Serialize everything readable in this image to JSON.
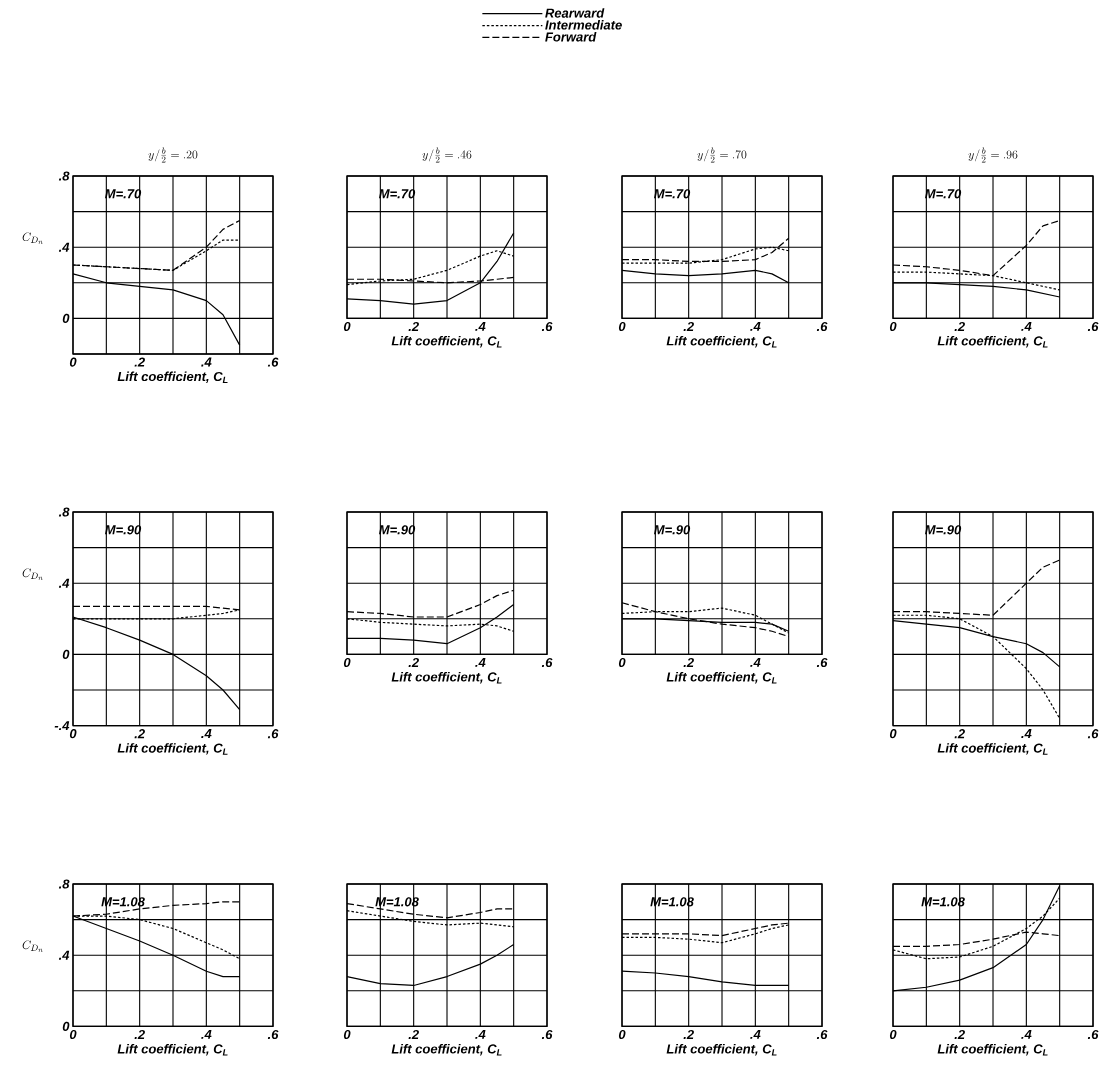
{
  "chart_data": [
    {
      "type": "line",
      "title": "y/\\frac{b}{2}=.20",
      "annotations": [
        "M=.70"
      ],
      "xlabel": "Lift coefficient, C$_{L}$",
      "ylabel": "C_{D_n}",
      "grid": true,
      "legend": "top",
      "xlim": [
        0,
        0.6
      ],
      "ylim": [
        -0.2,
        0.8
      ],
      "xticks": [
        0,
        {
          "value": 0.1,
          "label": null
        },
        {
          "value": 0.2,
          "label": ".2"
        },
        {
          "value": 0.3,
          "label": null
        },
        {
          "value": 0.4,
          "label": ".4"
        },
        {
          "value": 0.5,
          "label": null
        },
        {
          "value": 0.6,
          "label": ".6"
        }
      ],
      "yticks": [
        {
          "value": -0.2,
          "label": null
        },
        0,
        {
          "value": 0.2,
          "label": null
        },
        {
          "value": 0.4,
          "label": ".4"
        },
        {
          "value": 0.6,
          "label": null
        },
        {
          "value": 0.8,
          "label": ".8"
        }
      ],
      "x": [
        0,
        0.1,
        0.2,
        0.3,
        0.4,
        0.45,
        0.5
      ],
      "series": [
        {
          "name": "Rearward",
          "color": "#000000",
          "line_style": "solid",
          "values": [
            0.25,
            0.2,
            0.18,
            0.16,
            0.1,
            0.02,
            -0.15
          ]
        },
        {
          "name": "Intermediate",
          "color": "#000000",
          "line_style": "dotted",
          "values": [
            0.3,
            0.29,
            0.28,
            0.27,
            0.38,
            0.44,
            0.44
          ]
        },
        {
          "name": "Forward",
          "color": "#000000",
          "line_style": "dashed",
          "values": [
            0.3,
            0.29,
            0.28,
            0.27,
            0.4,
            0.5,
            0.55
          ]
        }
      ]
    },
    {
      "type": "line",
      "title": "y/\\frac{b}{2}=.46",
      "annotations": [
        "M=.70"
      ],
      "xlabel": "Lift coefficient, C$_{L}$",
      "grid": true,
      "tick_labels": "x",
      "xlim": [
        0,
        0.6
      ],
      "ylim": [
        0,
        0.8
      ],
      "xticks": [
        0,
        {
          "value": 0.1,
          "label": null
        },
        {
          "value": 0.2,
          "label": ".2"
        },
        {
          "value": 0.3,
          "label": null
        },
        {
          "value": 0.4,
          "label": ".4"
        },
        {
          "value": 0.5,
          "label": null
        },
        {
          "value": 0.6,
          "label": ".6"
        }
      ],
      "yticks": [
        0,
        0.2,
        0.4,
        0.6,
        0.8
      ],
      "x": [
        0,
        0.1,
        0.2,
        0.3,
        0.4,
        0.45,
        0.5
      ],
      "series": [
        {
          "color": "#000000",
          "line_style": "solid",
          "values": [
            0.11,
            0.1,
            0.08,
            0.1,
            0.2,
            0.32,
            0.48
          ]
        },
        {
          "color": "#000000",
          "line_style": "dotted",
          "values": [
            0.19,
            0.21,
            0.22,
            0.27,
            0.35,
            0.38,
            0.35
          ]
        },
        {
          "color": "#000000",
          "line_style": "dashed",
          "values": [
            0.22,
            0.22,
            0.21,
            0.2,
            0.21,
            0.22,
            0.23
          ]
        }
      ]
    },
    {
      "type": "line",
      "title": "y/\\frac{b}{2}=.70",
      "annotations": [
        "M=.70"
      ],
      "xlabel": "Lift coefficient, C$_{L}$",
      "grid": true,
      "tick_labels": "x",
      "xlim": [
        0,
        0.6
      ],
      "ylim": [
        0,
        0.8
      ],
      "xticks": [
        0,
        {
          "value": 0.1,
          "label": null
        },
        {
          "value": 0.2,
          "label": ".2"
        },
        {
          "value": 0.3,
          "label": null
        },
        {
          "value": 0.4,
          "label": ".4"
        },
        {
          "value": 0.5,
          "label": null
        },
        {
          "value": 0.6,
          "label": ".6"
        }
      ],
      "yticks": [
        0,
        0.2,
        0.4,
        0.6,
        0.8
      ],
      "x": [
        0,
        0.1,
        0.2,
        0.3,
        0.4,
        0.45,
        0.5
      ],
      "series": [
        {
          "color": "#000000",
          "line_style": "solid",
          "values": [
            0.27,
            0.25,
            0.24,
            0.25,
            0.27,
            0.25,
            0.2
          ]
        },
        {
          "color": "#000000",
          "line_style": "dotted",
          "values": [
            0.31,
            0.31,
            0.31,
            0.33,
            0.39,
            0.4,
            0.38
          ]
        },
        {
          "color": "#000000",
          "line_style": "dashed",
          "values": [
            0.33,
            0.33,
            0.32,
            0.32,
            0.33,
            0.37,
            0.45
          ]
        }
      ]
    },
    {
      "type": "line",
      "title": "y/\\frac{b}{2}=.96",
      "annotations": [
        "M=.70"
      ],
      "xlabel": "Lift coefficient, C$_{L}$",
      "grid": true,
      "tick_labels": "x",
      "xlim": [
        0,
        0.6
      ],
      "ylim": [
        0,
        0.8
      ],
      "xticks": [
        0,
        {
          "value": 0.1,
          "label": null
        },
        {
          "value": 0.2,
          "label": ".2"
        },
        {
          "value": 0.3,
          "label": null
        },
        {
          "value": 0.4,
          "label": ".4"
        },
        {
          "value": 0.5,
          "label": null
        },
        {
          "value": 0.6,
          "label": ".6"
        }
      ],
      "yticks": [
        0,
        0.2,
        0.4,
        0.6,
        0.8
      ],
      "x": [
        0,
        0.1,
        0.2,
        0.3,
        0.4,
        0.45,
        0.5
      ],
      "series": [
        {
          "color": "#000000",
          "line_style": "solid",
          "values": [
            0.2,
            0.2,
            0.19,
            0.18,
            0.16,
            0.14,
            0.12
          ]
        },
        {
          "color": "#000000",
          "line_style": "dotted",
          "values": [
            0.26,
            0.26,
            0.25,
            0.24,
            0.2,
            0.18,
            0.16
          ]
        },
        {
          "color": "#000000",
          "line_style": "dashed",
          "values": [
            0.3,
            0.29,
            0.27,
            0.24,
            0.41,
            0.52,
            0.55
          ]
        }
      ]
    },
    {
      "type": "line",
      "annotations": [
        "M=.90"
      ],
      "xlabel": "Lift coefficient, C$_{L}$",
      "ylabel": "C_{D_n}",
      "grid": true,
      "xlim": [
        0,
        0.6
      ],
      "ylim": [
        -0.4,
        0.8
      ],
      "xticks": [
        0,
        {
          "value": 0.1,
          "label": null
        },
        {
          "value": 0.2,
          "label": ".2"
        },
        {
          "value": 0.3,
          "label": null
        },
        {
          "value": 0.4,
          "label": ".4"
        },
        {
          "value": 0.5,
          "label": null
        },
        {
          "value": 0.6,
          "label": ".6"
        }
      ],
      "yticks": [
        {
          "value": -0.4,
          "label": "-.4"
        },
        {
          "value": -0.2,
          "label": null
        },
        0,
        {
          "value": 0.2,
          "label": null
        },
        {
          "value": 0.4,
          "label": ".4"
        },
        {
          "value": 0.6,
          "label": null
        },
        {
          "value": 0.8,
          "label": ".8"
        }
      ],
      "x": [
        0,
        0.1,
        0.2,
        0.3,
        0.4,
        0.45,
        0.5
      ],
      "series": [
        {
          "color": "#000000",
          "line_style": "solid",
          "values": [
            0.21,
            0.15,
            0.08,
            0.0,
            -0.12,
            -0.2,
            -0.31
          ]
        },
        {
          "color": "#000000",
          "line_style": "dotted",
          "values": [
            0.2,
            0.2,
            0.2,
            0.2,
            0.22,
            0.23,
            0.25
          ]
        },
        {
          "color": "#000000",
          "line_style": "dashed",
          "values": [
            0.27,
            0.27,
            0.27,
            0.27,
            0.27,
            0.26,
            0.25
          ]
        }
      ]
    },
    {
      "type": "line",
      "annotations": [
        "M=.90"
      ],
      "xlabel": "Lift coefficient, C$_{L}$",
      "grid": true,
      "tick_labels": "x",
      "xlim": [
        0,
        0.6
      ],
      "ylim": [
        0,
        0.8
      ],
      "xticks": [
        0,
        {
          "value": 0.1,
          "label": null
        },
        {
          "value": 0.2,
          "label": ".2"
        },
        {
          "value": 0.3,
          "label": null
        },
        {
          "value": 0.4,
          "label": ".4"
        },
        {
          "value": 0.5,
          "label": null
        },
        {
          "value": 0.6,
          "label": ".6"
        }
      ],
      "yticks": [
        0,
        0.2,
        0.4,
        0.6,
        0.8
      ],
      "x": [
        0,
        0.1,
        0.2,
        0.3,
        0.4,
        0.45,
        0.5
      ],
      "series": [
        {
          "color": "#000000",
          "line_style": "solid",
          "values": [
            0.09,
            0.09,
            0.08,
            0.06,
            0.15,
            0.21,
            0.28
          ]
        },
        {
          "color": "#000000",
          "line_style": "dotted",
          "values": [
            0.2,
            0.18,
            0.17,
            0.16,
            0.17,
            0.16,
            0.13
          ]
        },
        {
          "color": "#000000",
          "line_style": "dashed",
          "values": [
            0.24,
            0.23,
            0.21,
            0.21,
            0.28,
            0.33,
            0.36
          ]
        }
      ]
    },
    {
      "type": "line",
      "annotations": [
        "M=.90"
      ],
      "xlabel": "Lift coefficient, C$_{L}$",
      "grid": true,
      "tick_labels": "x",
      "xlim": [
        0,
        0.6
      ],
      "ylim": [
        0,
        0.8
      ],
      "xticks": [
        0,
        {
          "value": 0.1,
          "label": null
        },
        {
          "value": 0.2,
          "label": ".2"
        },
        {
          "value": 0.3,
          "label": null
        },
        {
          "value": 0.4,
          "label": ".4"
        },
        {
          "value": 0.5,
          "label": null
        },
        {
          "value": 0.6,
          "label": ".6"
        }
      ],
      "yticks": [
        0,
        0.2,
        0.4,
        0.6,
        0.8
      ],
      "x": [
        0,
        0.1,
        0.2,
        0.3,
        0.4,
        0.45,
        0.5
      ],
      "series": [
        {
          "color": "#000000",
          "line_style": "solid",
          "values": [
            0.2,
            0.2,
            0.19,
            0.18,
            0.18,
            0.17,
            0.13
          ]
        },
        {
          "color": "#000000",
          "line_style": "dotted",
          "values": [
            0.23,
            0.24,
            0.24,
            0.26,
            0.22,
            0.17,
            0.12
          ]
        },
        {
          "color": "#000000",
          "line_style": "dashed",
          "values": [
            0.29,
            0.24,
            0.2,
            0.17,
            0.15,
            0.13,
            0.1
          ]
        }
      ]
    },
    {
      "type": "line",
      "annotations": [
        "M=.90"
      ],
      "xlabel": "Lift coefficient, C$_{L}$",
      "grid": true,
      "tick_labels": "x",
      "xlim": [
        0,
        0.6
      ],
      "ylim": [
        -0.4,
        0.8
      ],
      "xticks": [
        0,
        {
          "value": 0.1,
          "label": null
        },
        {
          "value": 0.2,
          "label": ".2"
        },
        {
          "value": 0.3,
          "label": null
        },
        {
          "value": 0.4,
          "label": ".4"
        },
        {
          "value": 0.5,
          "label": null
        },
        {
          "value": 0.6,
          "label": ".6"
        }
      ],
      "yticks": [
        -0.4,
        -0.2,
        0,
        0.2,
        0.4,
        0.6,
        0.8
      ],
      "x": [
        0,
        0.1,
        0.2,
        0.3,
        0.4,
        0.45,
        0.5
      ],
      "series": [
        {
          "color": "#000000",
          "line_style": "solid",
          "values": [
            0.19,
            0.17,
            0.15,
            0.1,
            0.06,
            0.01,
            -0.07
          ]
        },
        {
          "color": "#000000",
          "line_style": "dotted",
          "values": [
            0.22,
            0.22,
            0.2,
            0.1,
            -0.08,
            -0.2,
            -0.36
          ]
        },
        {
          "color": "#000000",
          "line_style": "dashed",
          "values": [
            0.24,
            0.24,
            0.23,
            0.22,
            0.4,
            0.49,
            0.53
          ]
        }
      ]
    },
    {
      "type": "line",
      "annotations": [
        "M=1.08"
      ],
      "xlabel": "Lift coefficient, C$_{L}$",
      "ylabel": "C_{D_n}",
      "grid": true,
      "xlim": [
        0,
        0.6
      ],
      "ylim": [
        0,
        0.8
      ],
      "xticks": [
        0,
        {
          "value": 0.1,
          "label": null
        },
        {
          "value": 0.2,
          "label": ".2"
        },
        {
          "value": 0.3,
          "label": null
        },
        {
          "value": 0.4,
          "label": ".4"
        },
        {
          "value": 0.5,
          "label": null
        },
        {
          "value": 0.6,
          "label": ".6"
        }
      ],
      "yticks": [
        0,
        {
          "value": 0.2,
          "label": null
        },
        {
          "value": 0.4,
          "label": ".4"
        },
        {
          "value": 0.6,
          "label": null
        },
        {
          "value": 0.8,
          "label": ".8"
        }
      ],
      "x": [
        0,
        0.1,
        0.2,
        0.3,
        0.4,
        0.45,
        0.5
      ],
      "series": [
        {
          "color": "#000000",
          "line_style": "solid",
          "values": [
            0.62,
            0.55,
            0.48,
            0.4,
            0.31,
            0.28,
            0.28
          ]
        },
        {
          "color": "#000000",
          "line_style": "dotted",
          "values": [
            0.62,
            0.62,
            0.6,
            0.55,
            0.47,
            0.43,
            0.38
          ]
        },
        {
          "color": "#000000",
          "line_style": "dashed",
          "values": [
            0.62,
            0.63,
            0.66,
            0.68,
            0.69,
            0.7,
            0.7
          ]
        }
      ]
    },
    {
      "type": "line",
      "annotations": [
        "M=1.08"
      ],
      "xlabel": "Lift coefficient, C$_{L}$",
      "grid": true,
      "tick_labels": "x",
      "xlim": [
        0,
        0.6
      ],
      "ylim": [
        0,
        0.8
      ],
      "xticks": [
        0,
        {
          "value": 0.1,
          "label": null
        },
        {
          "value": 0.2,
          "label": ".2"
        },
        {
          "value": 0.3,
          "label": null
        },
        {
          "value": 0.4,
          "label": ".4"
        },
        {
          "value": 0.5,
          "label": null
        },
        {
          "value": 0.6,
          "label": ".6"
        }
      ],
      "yticks": [
        0,
        0.2,
        0.4,
        0.6,
        0.8
      ],
      "x": [
        0,
        0.1,
        0.2,
        0.3,
        0.4,
        0.45,
        0.5
      ],
      "series": [
        {
          "color": "#000000",
          "line_style": "solid",
          "values": [
            0.28,
            0.24,
            0.23,
            0.28,
            0.35,
            0.4,
            0.46
          ]
        },
        {
          "color": "#000000",
          "line_style": "dotted",
          "values": [
            0.65,
            0.62,
            0.59,
            0.57,
            0.58,
            0.57,
            0.56
          ]
        },
        {
          "color": "#000000",
          "line_style": "dashed",
          "values": [
            0.69,
            0.66,
            0.63,
            0.61,
            0.64,
            0.66,
            0.66
          ]
        }
      ]
    },
    {
      "type": "line",
      "annotations": [
        "M=1.08"
      ],
      "xlabel": "Lift coefficient, C$_{L}$",
      "grid": true,
      "tick_labels": "x",
      "xlim": [
        0,
        0.6
      ],
      "ylim": [
        0,
        0.8
      ],
      "xticks": [
        0,
        {
          "value": 0.1,
          "label": null
        },
        {
          "value": 0.2,
          "label": ".2"
        },
        {
          "value": 0.3,
          "label": null
        },
        {
          "value": 0.4,
          "label": ".4"
        },
        {
          "value": 0.5,
          "label": null
        },
        {
          "value": 0.6,
          "label": ".6"
        }
      ],
      "yticks": [
        0,
        0.2,
        0.4,
        0.6,
        0.8
      ],
      "x": [
        0,
        0.1,
        0.2,
        0.3,
        0.4,
        0.45,
        0.5
      ],
      "series": [
        {
          "color": "#000000",
          "line_style": "solid",
          "values": [
            0.31,
            0.3,
            0.28,
            0.25,
            0.23,
            0.23,
            0.23
          ]
        },
        {
          "color": "#000000",
          "line_style": "dotted",
          "values": [
            0.5,
            0.5,
            0.49,
            0.47,
            0.52,
            0.55,
            0.57
          ]
        },
        {
          "color": "#000000",
          "line_style": "dashed",
          "values": [
            0.52,
            0.52,
            0.52,
            0.51,
            0.55,
            0.57,
            0.58
          ]
        }
      ]
    },
    {
      "type": "line",
      "annotations": [
        "M=1.08"
      ],
      "xlabel": "Lift coefficient, C$_{L}$",
      "grid": true,
      "tick_labels": "x",
      "xlim": [
        0,
        0.6
      ],
      "ylim": [
        0,
        0.8
      ],
      "xticks": [
        0,
        {
          "value": 0.1,
          "label": null
        },
        {
          "value": 0.2,
          "label": ".2"
        },
        {
          "value": 0.3,
          "label": null
        },
        {
          "value": 0.4,
          "label": ".4"
        },
        {
          "value": 0.5,
          "label": null
        },
        {
          "value": 0.6,
          "label": ".6"
        }
      ],
      "yticks": [
        0,
        0.2,
        0.4,
        0.6,
        0.8
      ],
      "x": [
        0,
        0.1,
        0.2,
        0.3,
        0.4,
        0.45,
        0.5
      ],
      "series": [
        {
          "color": "#000000",
          "line_style": "solid",
          "values": [
            0.2,
            0.22,
            0.26,
            0.33,
            0.46,
            0.6,
            0.79
          ]
        },
        {
          "color": "#000000",
          "line_style": "dotted",
          "values": [
            0.43,
            0.38,
            0.39,
            0.45,
            0.55,
            0.62,
            0.72
          ]
        },
        {
          "color": "#000000",
          "line_style": "dashed",
          "values": [
            0.45,
            0.45,
            0.46,
            0.49,
            0.53,
            0.52,
            0.51
          ]
        }
      ]
    }
  ]
}
